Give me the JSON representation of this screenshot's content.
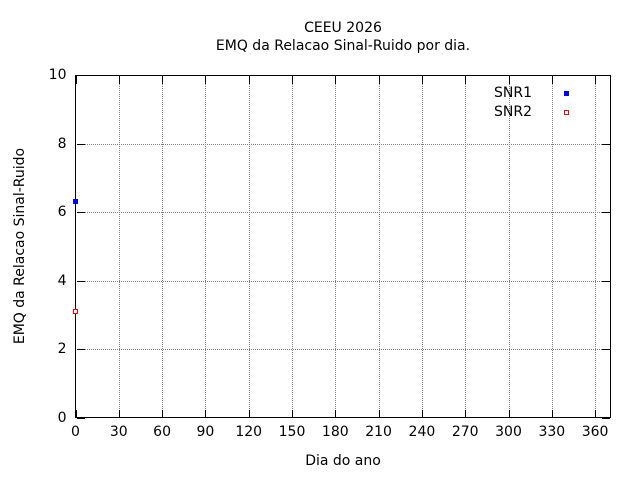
{
  "page": {
    "background": "#ffffff",
    "text_color": "#000000",
    "axis_color": "#000000",
    "grid_color": "#808080"
  },
  "chart_data": {
    "type": "scatter",
    "title": "CEEU 2026",
    "subtitle": "EMQ da Relacao Sinal-Ruido por dia.",
    "xlabel": "Dia do ano",
    "ylabel": "EMQ da Relacao Sinal-Ruido",
    "xlim": [
      0,
      371
    ],
    "ylim": [
      0,
      10
    ],
    "xticks": [
      0,
      30,
      60,
      90,
      120,
      150,
      180,
      210,
      240,
      270,
      300,
      330,
      360
    ],
    "yticks": [
      0,
      2,
      4,
      6,
      8,
      10
    ],
    "grid": "dotted",
    "ticks_mirrored": true,
    "legend_position": "top-right",
    "series": [
      {
        "name": "SNR1",
        "color": "#0000ff",
        "marker": "filled-square",
        "points": [
          [
            0,
            6.3
          ]
        ]
      },
      {
        "name": "SNR2",
        "color": "#ff0000",
        "marker": "open-square",
        "points": [
          [
            0,
            3.1
          ]
        ]
      }
    ]
  }
}
